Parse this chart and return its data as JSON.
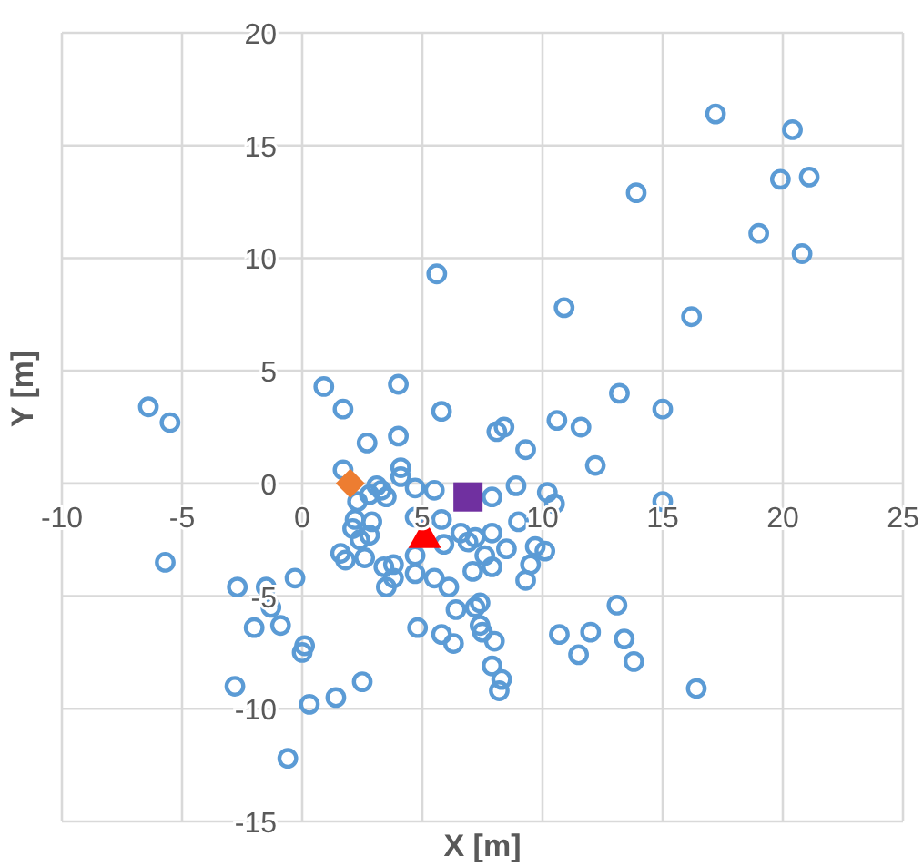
{
  "chart_data": {
    "type": "scatter",
    "xlabel": "X [m]",
    "ylabel": "Y [m]",
    "xlim": [
      -10,
      25
    ],
    "xticks": [
      -10,
      -5,
      0,
      5,
      10,
      15,
      20,
      25
    ],
    "ylim": [
      -15,
      20
    ],
    "yticks": [
      -15,
      -10,
      -5,
      0,
      5,
      10,
      15,
      20
    ],
    "grid": true,
    "series": [
      {
        "color": "#5b9bd5",
        "marker": "circle",
        "x": [
          17.2,
          20.4,
          19.9,
          21.1,
          13.9,
          19.0,
          20.8,
          5.6,
          10.9,
          16.2,
          0.9,
          4.0,
          1.7,
          5.8,
          13.2,
          15.0,
          10.6,
          11.6,
          8.1,
          8.4,
          2.7,
          4.0,
          9.3,
          12.2,
          -6.4,
          -5.5,
          -5.7,
          1.7,
          4.1,
          4.1,
          3.1,
          3.3,
          3.5,
          2.8,
          2.3,
          4.7,
          5.5,
          7.9,
          8.9,
          10.2,
          10.5,
          15.0,
          2.2,
          2.9,
          2.1,
          2.8,
          2.4,
          4.7,
          5.8,
          5.9,
          6.6,
          6.9,
          7.2,
          7.9,
          9.0,
          9.7,
          10.1,
          8.5,
          7.6,
          1.6,
          1.8,
          2.6,
          3.4,
          3.8,
          4.7,
          4.7,
          3.8,
          3.5,
          5.5,
          6.1,
          7.1,
          7.9,
          9.5,
          9.3,
          -0.3,
          -2.7,
          -1.5,
          -1.3,
          -2.0,
          -0.9,
          0.1,
          0.0,
          6.4,
          7.2,
          7.4,
          7.4,
          7.5,
          4.8,
          5.8,
          6.3,
          8.0,
          7.9,
          8.3,
          8.2,
          13.1,
          10.7,
          12.0,
          11.5,
          13.4,
          13.8,
          16.4,
          -2.8,
          1.4,
          2.5,
          0.3,
          -0.6
        ],
        "values": [
          16.4,
          15.7,
          13.5,
          13.6,
          12.9,
          11.1,
          10.2,
          9.3,
          7.8,
          7.4,
          4.3,
          4.4,
          3.3,
          3.2,
          4.0,
          3.3,
          2.8,
          2.5,
          2.3,
          2.5,
          1.8,
          2.1,
          1.5,
          0.8,
          3.4,
          2.7,
          -3.5,
          0.6,
          0.7,
          0.3,
          -0.1,
          -0.3,
          -0.6,
          -0.5,
          -0.8,
          -0.2,
          -0.3,
          -0.6,
          -0.1,
          -0.4,
          -0.9,
          -0.8,
          -1.6,
          -1.7,
          -2.0,
          -2.3,
          -2.5,
          -1.5,
          -1.6,
          -2.7,
          -2.2,
          -2.6,
          -2.4,
          -2.2,
          -1.7,
          -2.8,
          -3.0,
          -2.9,
          -3.2,
          -3.1,
          -3.4,
          -3.3,
          -3.7,
          -3.6,
          -3.2,
          -4.0,
          -4.2,
          -4.6,
          -4.2,
          -4.6,
          -3.9,
          -3.7,
          -3.6,
          -4.3,
          -4.2,
          -4.6,
          -4.6,
          -5.5,
          -6.4,
          -6.3,
          -7.2,
          -7.5,
          -5.6,
          -5.5,
          -5.3,
          -6.3,
          -6.6,
          -6.4,
          -6.7,
          -7.1,
          -7.0,
          -8.1,
          -8.7,
          -9.2,
          -5.4,
          -6.7,
          -6.6,
          -7.6,
          -6.9,
          -7.9,
          -9.1,
          -9.0,
          -9.5,
          -8.8,
          -9.8,
          -12.2
        ]
      },
      {
        "color": "#ed7d31",
        "marker": "diamond",
        "x": [
          2.0
        ],
        "values": [
          0.0
        ]
      },
      {
        "color": "#7030a0",
        "marker": "square",
        "x": [
          6.9
        ],
        "values": [
          -0.6
        ]
      },
      {
        "color": "#ff0000",
        "marker": "triangle",
        "x": [
          5.1
        ],
        "values": [
          -2.3
        ]
      }
    ]
  }
}
